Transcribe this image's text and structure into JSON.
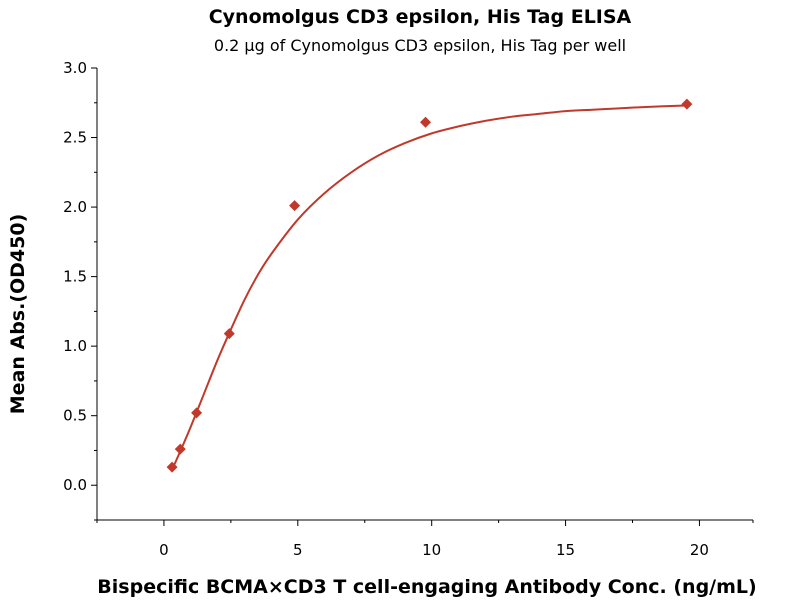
{
  "chart_data": {
    "type": "scatter",
    "title": "Cynomolgus CD3 epsilon, His Tag ELISA",
    "subtitle": "0.2 μg of Cynomolgus CD3 epsilon, His Tag per well",
    "xlabel": "Bispecific BCMA×CD3 T cell-engaging Antibody Conc. (ng/mL)",
    "ylabel": "Mean Abs.(OD450)",
    "xlim": [
      -2.5,
      22
    ],
    "ylim": [
      -0.25,
      3.0
    ],
    "x_ticks": [
      0,
      5,
      10,
      15,
      20
    ],
    "x_tick_labels": [
      "0",
      "5",
      "10",
      "15",
      "20"
    ],
    "x_minor_ticks": [
      -2.5,
      2.5,
      7.5,
      12.5,
      17.5,
      22
    ],
    "y_ticks": [
      0.0,
      0.5,
      1.0,
      1.5,
      2.0,
      2.5,
      3.0
    ],
    "y_tick_labels": [
      "0.0",
      "0.5",
      "1.0",
      "1.5",
      "2.0",
      "2.5",
      "3.0"
    ],
    "y_minor_ticks": [
      -0.25,
      0.25,
      0.75,
      1.25,
      1.75,
      2.25,
      2.75
    ],
    "grid": false,
    "series": [
      {
        "marker": "diamond",
        "color": "#c0392b",
        "points": [
          {
            "x": 0.305,
            "y": 0.13
          },
          {
            "x": 0.61,
            "y": 0.26
          },
          {
            "x": 1.22,
            "y": 0.52
          },
          {
            "x": 2.44,
            "y": 1.09
          },
          {
            "x": 4.88,
            "y": 2.01
          },
          {
            "x": 9.77,
            "y": 2.61
          },
          {
            "x": 19.53,
            "y": 2.74
          }
        ],
        "fit_curve": {
          "color": "#c0392b",
          "x": [
            0.3,
            0.6,
            1.0,
            1.5,
            2.0,
            2.5,
            3.0,
            3.5,
            4.0,
            5.0,
            6.0,
            7.0,
            8.0,
            9.0,
            10.0,
            11.0,
            12.0,
            13.0,
            14.0,
            15.0,
            16.0,
            17.0,
            18.0,
            19.5
          ],
          "y": [
            0.11,
            0.24,
            0.42,
            0.66,
            0.9,
            1.12,
            1.33,
            1.51,
            1.66,
            1.91,
            2.1,
            2.25,
            2.37,
            2.46,
            2.53,
            2.58,
            2.62,
            2.65,
            2.67,
            2.69,
            2.7,
            2.71,
            2.72,
            2.73
          ]
        }
      }
    ]
  }
}
